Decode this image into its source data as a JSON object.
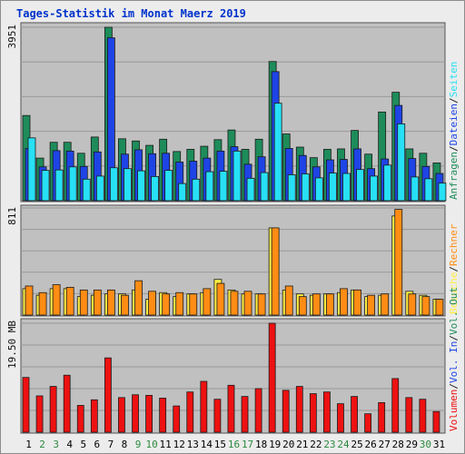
{
  "chart_data": {
    "type": "bar",
    "title": "Tages-Statistik im Monat Maerz 2019",
    "categories": [
      "1",
      "2",
      "3",
      "4",
      "5",
      "6",
      "7",
      "8",
      "9",
      "10",
      "11",
      "12",
      "13",
      "14",
      "15",
      "16",
      "17",
      "18",
      "19",
      "20",
      "21",
      "22",
      "23",
      "24",
      "25",
      "26",
      "27",
      "28",
      "29",
      "30",
      "31"
    ],
    "weekend_days": [
      "2",
      "3",
      "9",
      "10",
      "16",
      "17",
      "23",
      "24",
      "30"
    ],
    "colors": {
      "weekday_label": "#000000",
      "weekend_label": "#2b8a3e",
      "title": "#0033cc",
      "Anfragen": "#1e8c5a",
      "Dateien": "#1e44e6",
      "Seiten": "#27e0f5",
      "Besuche": "#ffee44",
      "Rechner": "#ff8c14",
      "Volumen": "#ee1111",
      "panel_bg": "#c0c0c0",
      "grid": "#999999"
    },
    "panels": [
      {
        "id": "hits",
        "ymax_label": "3951",
        "ymax": 3951,
        "legend": [
          {
            "label": "Anfragen",
            "color": "#1e8c5a"
          },
          {
            "label": "/",
            "color": "#222222"
          },
          {
            "label": "Dateien",
            "color": "#1e44e6"
          },
          {
            "label": "/",
            "color": "#222222"
          },
          {
            "label": "Seiten",
            "color": "#27e0f5"
          }
        ],
        "series": [
          {
            "name": "Anfragen",
            "values": [
              1940,
              970,
              1330,
              1330,
              1080,
              1450,
              3951,
              1410,
              1360,
              1260,
              1400,
              1120,
              1170,
              1240,
              1390,
              1610,
              1170,
              1400,
              3170,
              1520,
              1220,
              980,
              1170,
              1180,
              1600,
              1060,
              2020,
              2470,
              1180,
              1080,
              860
            ]
          },
          {
            "name": "Dateien",
            "values": [
              1190,
              770,
              1140,
              1130,
              780,
              1110,
              3710,
              1060,
              1160,
              1070,
              1080,
              880,
              900,
              970,
              1130,
              1230,
              830,
              1000,
              2940,
              1190,
              1030,
              770,
              930,
              940,
              1180,
              730,
              950,
              2170,
              960,
              780,
              620
            ]
          },
          {
            "name": "Seiten",
            "values": [
              1430,
              690,
              700,
              770,
              490,
              560,
              750,
              730,
              680,
              550,
              690,
              390,
              490,
              660,
              670,
              1130,
              510,
              640,
              2220,
              590,
              610,
              520,
              630,
              620,
              710,
              560,
              810,
              1750,
              540,
              500,
              400
            ]
          }
        ]
      },
      {
        "id": "visits",
        "ymax_label": "811",
        "ymax": 811,
        "legend": [
          {
            "label": "Besuche",
            "color": "#ffee44"
          },
          {
            "label": "/",
            "color": "#222222"
          },
          {
            "label": "Rechner",
            "color": "#ff8c14"
          }
        ],
        "series": [
          {
            "name": "Besuche",
            "values": [
              200,
              150,
              200,
              200,
              140,
              150,
              160,
              160,
              190,
              120,
              170,
              140,
              160,
              170,
              270,
              190,
              160,
              160,
              660,
              190,
              160,
              150,
              160,
              170,
              190,
              140,
              150,
              750,
              180,
              150,
              120
            ]
          },
          {
            "name": "Rechner",
            "values": [
              220,
              170,
              230,
              210,
              190,
              190,
              190,
              150,
              260,
              180,
              160,
              170,
              160,
              200,
              240,
              180,
              180,
              160,
              660,
              220,
              140,
              160,
              160,
              200,
              190,
              150,
              160,
              800,
              160,
              140,
              120
            ]
          }
        ]
      },
      {
        "id": "volume",
        "ymax_label": "19.50 MB",
        "ymax": 19.5,
        "legend": [
          {
            "label": "Volumen",
            "color": "#ee1111"
          },
          {
            "label": "/",
            "color": "#222222"
          },
          {
            "label": "Vol. In",
            "color": "#1e44e6"
          },
          {
            "label": "/",
            "color": "#222222"
          },
          {
            "label": "Vol. Out",
            "color": "#1e8c5a"
          }
        ],
        "series": [
          {
            "name": "Volumen",
            "values": [
              9.8,
              6.5,
              8.2,
              10.2,
              4.8,
              5.8,
              13.3,
              6.2,
              6.7,
              6.6,
              6.1,
              4.7,
              7.2,
              9.1,
              5.9,
              8.4,
              6.4,
              7.8,
              19.5,
              7.5,
              8.2,
              6.9,
              7.2,
              5.1,
              6.4,
              3.3,
              5.3,
              9.6,
              6.2,
              5.9,
              3.7
            ]
          }
        ]
      }
    ]
  }
}
